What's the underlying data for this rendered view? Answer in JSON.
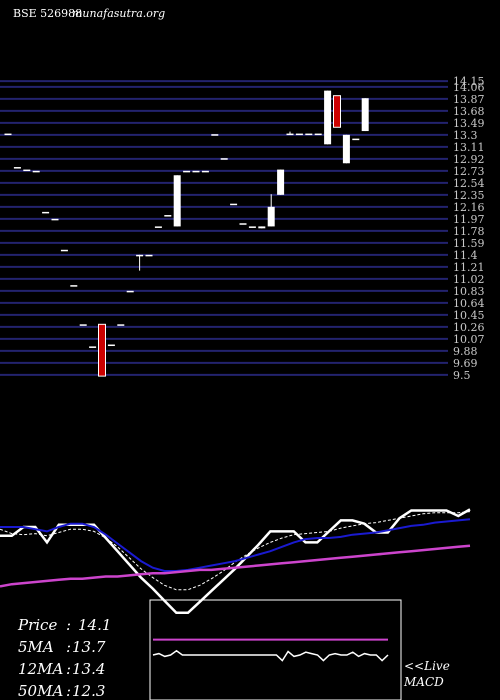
{
  "header": {
    "symbol": "BSE 526988",
    "site": "munafasutra.org"
  },
  "stats": {
    "price_label": "Price",
    "price_value": "14.1",
    "ma5_label": "5MA",
    "ma5_value": "13.7",
    "ma12_label": "12MA",
    "ma12_value": "13.4",
    "ma50_label": "50MA",
    "ma50_value": "12.3"
  },
  "macd": {
    "live_label": "<<Live",
    "macd_label": "MACD"
  },
  "colors": {
    "background": "#000000",
    "grid": "#23236e",
    "up_candle": "#ffffff",
    "down_candle": "#cc0000",
    "price_line": "#ffffff",
    "ma_short": "#ffffff",
    "ma_mid": "#1a1ad0",
    "ma_long": "#cc44cc",
    "text": "#ffffff",
    "tick_text": "#c8c8c8"
  },
  "chart_data": [
    {
      "type": "candlestick",
      "title": "",
      "y_ticks": [
        14.15,
        14.06,
        13.87,
        13.68,
        13.49,
        13.3,
        13.11,
        12.92,
        12.73,
        12.54,
        12.35,
        12.16,
        11.97,
        11.78,
        11.59,
        11.4,
        11.21,
        11.02,
        10.83,
        10.64,
        10.45,
        10.26,
        10.07,
        9.88,
        9.69,
        9.5
      ],
      "y_tick_labels": [
        "14.15",
        "14.06",
        "13.87",
        "13.68",
        "13.49",
        "13.3",
        "13.11",
        "12.92",
        "12.73",
        "12.54",
        "12.35",
        "12.16",
        "11.97",
        "11.78",
        "11.59",
        "11.4",
        "11.21",
        "11.02",
        "10.83",
        "10.64",
        "10.45",
        "10.26",
        "10.07",
        "9.88",
        "9.69",
        "9.5"
      ],
      "ylim": [
        9.45,
        14.2
      ],
      "grid": true,
      "candles": [
        {
          "o": 13.32,
          "h": 13.32,
          "l": 13.32,
          "c": 13.32
        },
        {
          "o": 12.79,
          "h": 12.79,
          "l": 12.79,
          "c": 12.79
        },
        {
          "o": 12.75,
          "h": 12.75,
          "l": 12.75,
          "c": 12.75
        },
        {
          "o": 12.73,
          "h": 12.73,
          "l": 12.73,
          "c": 12.73
        },
        {
          "o": 12.08,
          "h": 12.08,
          "l": 12.08,
          "c": 12.08
        },
        {
          "o": 11.97,
          "h": 11.97,
          "l": 11.97,
          "c": 11.97
        },
        {
          "o": 11.48,
          "h": 11.48,
          "l": 11.48,
          "c": 11.48
        },
        {
          "o": 10.92,
          "h": 10.92,
          "l": 10.92,
          "c": 10.92
        },
        {
          "o": 10.3,
          "h": 10.3,
          "l": 10.3,
          "c": 10.3
        },
        {
          "o": 9.95,
          "h": 9.95,
          "l": 9.95,
          "c": 9.95
        },
        {
          "o": 10.3,
          "h": 10.3,
          "l": 9.48,
          "c": 9.48
        },
        {
          "o": 9.98,
          "h": 9.98,
          "l": 9.98,
          "c": 9.98
        },
        {
          "o": 10.3,
          "h": 10.3,
          "l": 10.3,
          "c": 10.3
        },
        {
          "o": 10.83,
          "h": 10.83,
          "l": 10.83,
          "c": 10.83
        },
        {
          "o": 11.4,
          "h": 11.4,
          "l": 11.15,
          "c": 11.4
        },
        {
          "o": 11.4,
          "h": 11.4,
          "l": 11.4,
          "c": 11.4
        },
        {
          "o": 11.85,
          "h": 11.85,
          "l": 11.85,
          "c": 11.85
        },
        {
          "o": 12.03,
          "h": 12.03,
          "l": 12.03,
          "c": 12.03
        },
        {
          "o": 11.85,
          "h": 12.66,
          "l": 11.85,
          "c": 12.66
        },
        {
          "o": 12.73,
          "h": 12.73,
          "l": 12.73,
          "c": 12.73
        },
        {
          "o": 12.73,
          "h": 12.73,
          "l": 12.73,
          "c": 12.73
        },
        {
          "o": 12.73,
          "h": 12.73,
          "l": 12.73,
          "c": 12.73
        },
        {
          "o": 13.31,
          "h": 13.31,
          "l": 13.31,
          "c": 13.31
        },
        {
          "o": 12.93,
          "h": 12.93,
          "l": 12.93,
          "c": 12.93
        },
        {
          "o": 12.21,
          "h": 12.21,
          "l": 12.21,
          "c": 12.21
        },
        {
          "o": 11.9,
          "h": 11.9,
          "l": 11.9,
          "c": 11.9
        },
        {
          "o": 11.85,
          "h": 11.85,
          "l": 11.85,
          "c": 11.85
        },
        {
          "o": 11.85,
          "h": 11.85,
          "l": 11.82,
          "c": 11.82
        },
        {
          "o": 11.85,
          "h": 12.36,
          "l": 11.85,
          "c": 12.16
        },
        {
          "o": 12.35,
          "h": 12.75,
          "l": 12.35,
          "c": 12.75
        },
        {
          "o": 13.32,
          "h": 13.35,
          "l": 13.3,
          "c": 13.32
        },
        {
          "o": 13.32,
          "h": 13.32,
          "l": 13.32,
          "c": 13.32
        },
        {
          "o": 13.32,
          "h": 13.32,
          "l": 13.32,
          "c": 13.32
        },
        {
          "o": 13.32,
          "h": 13.32,
          "l": 13.32,
          "c": 13.32
        },
        {
          "o": 13.15,
          "h": 14.0,
          "l": 13.15,
          "c": 14.0
        },
        {
          "o": 13.92,
          "h": 13.92,
          "l": 13.42,
          "c": 13.42
        },
        {
          "o": 12.85,
          "h": 13.3,
          "l": 12.85,
          "c": 13.3
        },
        {
          "o": 13.24,
          "h": 13.24,
          "l": 13.24,
          "c": 13.24
        },
        {
          "o": 13.36,
          "h": 13.88,
          "l": 13.36,
          "c": 13.88
        }
      ]
    },
    {
      "type": "line",
      "title": "",
      "series": [
        {
          "values": [
            0.28,
            0.28,
            0.2,
            0.2,
            0.34,
            0.18,
            0.18,
            0.18,
            0.18,
            0.3,
            0.42,
            0.54,
            0.66,
            0.76,
            0.87,
            0.98,
            0.98,
            0.88,
            0.78,
            0.68,
            0.58,
            0.47,
            0.36,
            0.24,
            0.24,
            0.24,
            0.34,
            0.34,
            0.24,
            0.14,
            0.14,
            0.17,
            0.25,
            0.25,
            0.12,
            0.05,
            0.05,
            0.05,
            0.05,
            0.1,
            0.04
          ]
        },
        {
          "values": [
            0.22,
            0.26,
            0.27,
            0.26,
            0.28,
            0.25,
            0.22,
            0.22,
            0.24,
            0.3,
            0.38,
            0.48,
            0.58,
            0.66,
            0.73,
            0.77,
            0.77,
            0.73,
            0.67,
            0.6,
            0.52,
            0.45,
            0.39,
            0.34,
            0.3,
            0.27,
            0.26,
            0.25,
            0.24,
            0.21,
            0.19,
            0.17,
            0.16,
            0.14,
            0.12,
            0.1,
            0.08,
            0.07,
            0.07,
            0.07,
            0.06
          ]
        },
        {
          "values": [
            0.2,
            0.2,
            0.2,
            0.22,
            0.24,
            0.2,
            0.17,
            0.17,
            0.2,
            0.27,
            0.35,
            0.43,
            0.51,
            0.57,
            0.6,
            0.6,
            0.59,
            0.57,
            0.55,
            0.53,
            0.51,
            0.48,
            0.45,
            0.42,
            0.38,
            0.34,
            0.31,
            0.3,
            0.3,
            0.29,
            0.27,
            0.26,
            0.25,
            0.23,
            0.21,
            0.19,
            0.18,
            0.16,
            0.15,
            0.14,
            0.13
          ]
        },
        {
          "values": [
            0.74,
            0.72,
            0.71,
            0.7,
            0.69,
            0.68,
            0.67,
            0.67,
            0.66,
            0.65,
            0.65,
            0.64,
            0.63,
            0.62,
            0.62,
            0.61,
            0.6,
            0.59,
            0.59,
            0.58,
            0.57,
            0.56,
            0.55,
            0.54,
            0.53,
            0.52,
            0.51,
            0.5,
            0.49,
            0.48,
            0.47,
            0.46,
            0.45,
            0.44,
            0.43,
            0.42,
            0.41,
            0.4,
            0.39,
            0.38,
            0.37
          ]
        }
      ]
    },
    {
      "type": "line",
      "title": "",
      "series": [
        {
          "values": [
            0.5,
            0.48,
            0.52,
            0.5,
            0.44,
            0.5,
            0.5,
            0.5,
            0.5,
            0.5,
            0.5,
            0.5,
            0.5,
            0.5,
            0.5,
            0.5,
            0.5,
            0.5,
            0.5,
            0.5,
            0.5,
            0.5,
            0.58,
            0.45,
            0.52,
            0.5,
            0.46,
            0.48,
            0.5,
            0.58,
            0.5,
            0.48,
            0.5,
            0.5,
            0.46,
            0.52,
            0.48,
            0.5,
            0.5,
            0.58,
            0.5
          ]
        },
        {
          "values": [
            0.28,
            0.28,
            0.28,
            0.28,
            0.28,
            0.28,
            0.28,
            0.28,
            0.28,
            0.28,
            0.28,
            0.28,
            0.28,
            0.28,
            0.28,
            0.28,
            0.28,
            0.28,
            0.28,
            0.28,
            0.28,
            0.28,
            0.28,
            0.28,
            0.28,
            0.28,
            0.28,
            0.28,
            0.28,
            0.28,
            0.28,
            0.28,
            0.28,
            0.28,
            0.28,
            0.28,
            0.28,
            0.28,
            0.28,
            0.28,
            0.28
          ]
        }
      ]
    }
  ]
}
